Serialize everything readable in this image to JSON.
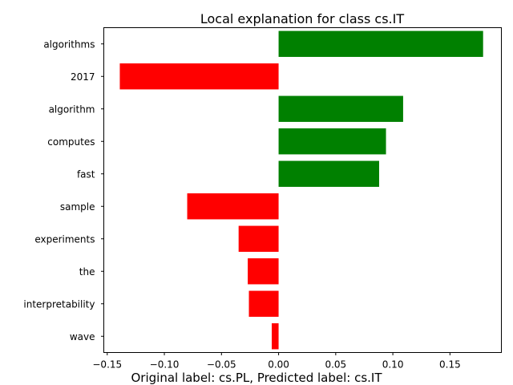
{
  "chart_data": {
    "type": "bar",
    "orientation": "horizontal",
    "title": "Local explanation for class cs.IT",
    "caption": "Original label: cs.PL, Predicted label: cs.IT",
    "xlabel": "",
    "ylabel": "",
    "xlim": [
      -0.153,
      0.195
    ],
    "xticks": [
      -0.15,
      -0.1,
      -0.05,
      0.0,
      0.05,
      0.1,
      0.15
    ],
    "xtick_labels": [
      "−0.15",
      "−0.10",
      "−0.05",
      "0.00",
      "0.05",
      "0.10",
      "0.15"
    ],
    "categories": [
      "algorithms",
      "2017",
      "algorithm",
      "computes",
      "fast",
      "sample",
      "experiments",
      "the",
      "interpretability",
      "wave"
    ],
    "values": [
      0.179,
      -0.139,
      0.109,
      0.094,
      0.088,
      -0.08,
      -0.035,
      -0.027,
      -0.026,
      -0.006
    ],
    "colors": {
      "positive": "#008000",
      "negative": "#ff0000"
    },
    "grid": false,
    "legend": "none"
  }
}
